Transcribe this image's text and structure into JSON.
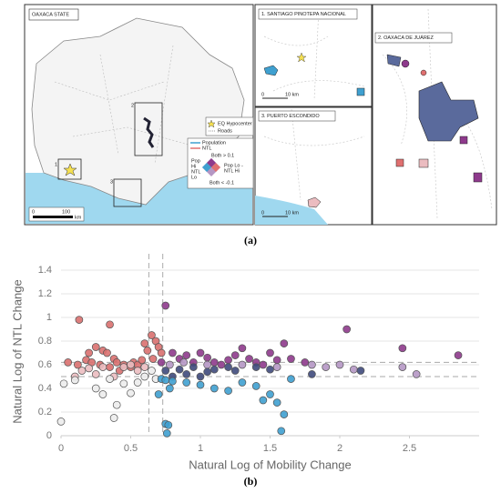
{
  "map_panel": {
    "main_title": "OAXACA STATE",
    "legend": {
      "hypocenter": "EQ Hypocenter",
      "roads": "Roads",
      "population": "Population",
      "ntl": "NTL",
      "both_high": "Both > 0.1",
      "pop_hi": [
        "Pop",
        "Hi",
        "NTL",
        "Lo"
      ],
      "pop_lo": [
        "Pop Lo -",
        "NTL Hi"
      ],
      "both_low": "Both < -0.1"
    },
    "scale": {
      "start": "0",
      "end": "100",
      "unit": "km"
    },
    "region_labels": [
      "1",
      "2",
      "3"
    ],
    "insets": [
      {
        "title": "1. SANTIAGO PINOTEPA NACIONAL",
        "scale_start": "0",
        "scale_end": "10 km"
      },
      {
        "title": "3. PUERTO ESCONDIDO",
        "scale_start": "0",
        "scale_end": "10 km"
      },
      {
        "title": "2. OAXACA DE JUÁREZ"
      }
    ],
    "caption": "(a)"
  },
  "chart_data": {
    "type": "scatter",
    "caption": "(b)",
    "x_label": "Natural Log of Mobility Change",
    "y_label": "Natural Log of NTL Change",
    "xlim": [
      0,
      3
    ],
    "ylim": [
      0,
      1.5
    ],
    "xticks": [
      0,
      0.5,
      1,
      1.5,
      2,
      2.5
    ],
    "yticks": [
      0,
      0.2,
      0.4,
      0.6,
      0.8,
      1,
      1.2,
      1.4
    ],
    "grid": true,
    "reference_lines": {
      "x": [
        0.63,
        0.73
      ],
      "y": [
        0.5,
        0.62
      ]
    },
    "series": [
      {
        "color": "#d9706f",
        "x": [
          0.13,
          0.35,
          0.05,
          0.2,
          0.25,
          0.3,
          0.33,
          0.38,
          0.18,
          0.22,
          0.28,
          0.4,
          0.45,
          0.5,
          0.52,
          0.55,
          0.58,
          0.6,
          0.62,
          0.65,
          0.68,
          0.7,
          0.72,
          0.66,
          0.12,
          0.35,
          0.42
        ],
        "values": [
          0.98,
          0.94,
          0.62,
          0.7,
          0.75,
          0.72,
          0.7,
          0.65,
          0.64,
          0.62,
          0.6,
          0.62,
          0.6,
          0.58,
          0.62,
          0.6,
          0.64,
          0.78,
          0.72,
          0.85,
          0.8,
          0.75,
          0.7,
          0.65,
          0.6,
          0.58,
          0.55
        ]
      },
      {
        "color": "#ebbcc0",
        "x": [
          0.1,
          0.15,
          0.2,
          0.25,
          0.3,
          0.38,
          0.45,
          0.5,
          0.55,
          0.6
        ],
        "values": [
          0.5,
          0.55,
          0.57,
          0.52,
          0.58,
          0.5,
          0.58,
          0.6,
          0.55,
          0.58
        ]
      },
      {
        "color": "#ececec",
        "x": [
          0,
          0.02,
          0.1,
          0.25,
          0.3,
          0.35,
          0.45,
          0.5,
          0.4,
          0.38,
          0.55,
          0.6,
          0.65,
          0.68
        ],
        "values": [
          0.12,
          0.44,
          0.47,
          0.4,
          0.35,
          0.48,
          0.44,
          0.36,
          0.26,
          0.15,
          0.45,
          0.5,
          0.55,
          0.48
        ]
      },
      {
        "color": "#8e3a8c",
        "x": [
          0.75,
          0.72,
          0.8,
          0.85,
          0.9,
          0.95,
          1.0,
          1.05,
          1.1,
          1.15,
          1.2,
          1.25,
          1.3,
          1.35,
          1.4,
          1.5,
          1.55,
          1.6,
          1.65,
          1.75,
          2.05,
          2.45,
          2.85,
          1.45
        ],
        "values": [
          1.1,
          0.62,
          0.7,
          0.65,
          0.68,
          0.62,
          0.7,
          0.66,
          0.62,
          0.6,
          0.64,
          0.68,
          0.74,
          0.65,
          0.62,
          0.7,
          0.64,
          0.78,
          0.65,
          0.62,
          0.9,
          0.74,
          0.68,
          0.6
        ]
      },
      {
        "color": "#b597c4",
        "x": [
          0.78,
          0.88,
          1.05,
          1.3,
          1.55,
          1.8,
          1.9,
          2.0,
          2.1,
          2.45,
          2.55
        ],
        "values": [
          0.6,
          0.62,
          0.6,
          0.6,
          0.58,
          0.6,
          0.58,
          0.6,
          0.56,
          0.58,
          0.52
        ]
      },
      {
        "color": "#3f4a7c",
        "x": [
          0.75,
          0.8,
          0.85,
          0.9,
          0.95,
          1.0,
          1.05,
          1.1,
          1.2,
          1.25,
          1.4,
          1.5,
          1.8,
          2.15
        ],
        "values": [
          0.55,
          0.5,
          0.56,
          0.52,
          0.58,
          0.5,
          0.54,
          0.56,
          0.58,
          0.55,
          0.58,
          0.56,
          0.52,
          0.55
        ]
      },
      {
        "color": "#3fa0d0",
        "x": [
          0.72,
          0.75,
          0.8,
          0.78,
          0.7,
          0.75,
          0.77,
          0.76,
          0.9,
          1.0,
          1.1,
          1.2,
          1.3,
          1.4,
          1.5,
          1.45,
          1.55,
          1.6,
          1.58,
          1.65
        ],
        "values": [
          0.48,
          0.47,
          0.46,
          0.4,
          0.35,
          0.1,
          0.09,
          0.02,
          0.45,
          0.43,
          0.4,
          0.38,
          0.45,
          0.42,
          0.35,
          0.3,
          0.28,
          0.18,
          0.04,
          0.48
        ]
      }
    ]
  }
}
